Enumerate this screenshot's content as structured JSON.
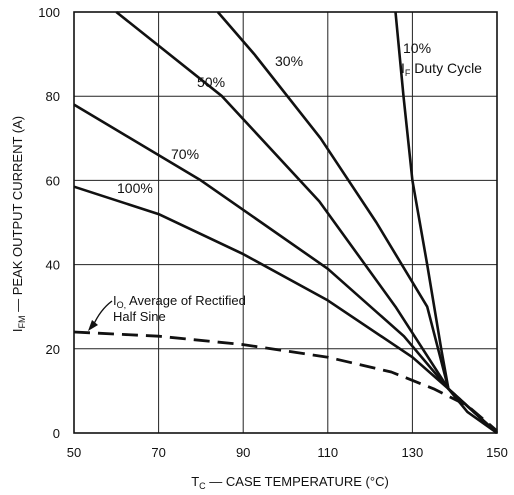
{
  "chart_data": {
    "type": "line",
    "xlabel": "T",
    "xlabel_sub": "C",
    "xlabel_rest": " — CASE TEMPERATURE (°C)",
    "ylabel": "I",
    "ylabel_sub": "FM",
    "ylabel_rest": " — PEAK OUTPUT CURRENT (A)",
    "xlim": [
      50,
      150
    ],
    "ylim": [
      0,
      100
    ],
    "x_ticks": [
      "50",
      "70",
      "90",
      "110",
      "130",
      "150"
    ],
    "y_ticks": [
      "0",
      "20",
      "40",
      "60",
      "80",
      "100"
    ],
    "grid": true,
    "series": [
      {
        "name": "10%",
        "style": "solid",
        "points": [
          [
            126,
            100
          ],
          [
            127.9,
            80
          ],
          [
            130,
            60
          ],
          [
            133.5,
            40
          ],
          [
            136.8,
            20
          ],
          [
            138.5,
            10.5
          ],
          [
            143,
            5
          ],
          [
            150,
            0
          ]
        ]
      },
      {
        "name": "30%",
        "style": "solid",
        "points": [
          [
            84,
            100
          ],
          [
            92.6,
            90
          ],
          [
            108.3,
            70
          ],
          [
            121.5,
            50
          ],
          [
            133.5,
            30
          ],
          [
            138.5,
            10.5
          ],
          [
            150,
            0
          ]
        ]
      },
      {
        "name": "50%",
        "style": "solid",
        "points": [
          [
            60,
            100
          ],
          [
            85,
            80
          ],
          [
            108,
            55
          ],
          [
            126,
            30
          ],
          [
            138.5,
            10.5
          ],
          [
            150,
            0
          ]
        ]
      },
      {
        "name": "70%",
        "style": "solid",
        "points": [
          [
            50,
            78
          ],
          [
            80,
            60
          ],
          [
            110,
            39
          ],
          [
            128,
            23
          ],
          [
            138.5,
            10.5
          ],
          [
            150,
            0
          ]
        ]
      },
      {
        "name": "100%",
        "style": "solid",
        "points": [
          [
            50,
            58.5
          ],
          [
            70,
            52
          ],
          [
            90,
            42.5
          ],
          [
            110,
            31.5
          ],
          [
            130,
            18
          ],
          [
            138.5,
            10.5
          ],
          [
            150,
            0
          ]
        ]
      },
      {
        "name": "I_O, Average of Rectified Half Sine",
        "style": "dashed",
        "points": [
          [
            50,
            24
          ],
          [
            70,
            23
          ],
          [
            90,
            21
          ],
          [
            110,
            18
          ],
          [
            125,
            14.5
          ],
          [
            135,
            10.5
          ],
          [
            143,
            6.5
          ],
          [
            150,
            0.5
          ]
        ]
      }
    ],
    "labels": {
      "s10_line1": "10%",
      "s10_line2_main": "I",
      "s10_line2_sub": "F",
      "s10_line2_rest": " Duty Cycle",
      "s30": "30%",
      "s50": "50%",
      "s70": "70%",
      "s100": "100%",
      "io_line1_main": "I",
      "io_line1_sub": "O,",
      "io_line1_rest": " Average of Rectified",
      "io_line2": "Half Sine"
    }
  }
}
